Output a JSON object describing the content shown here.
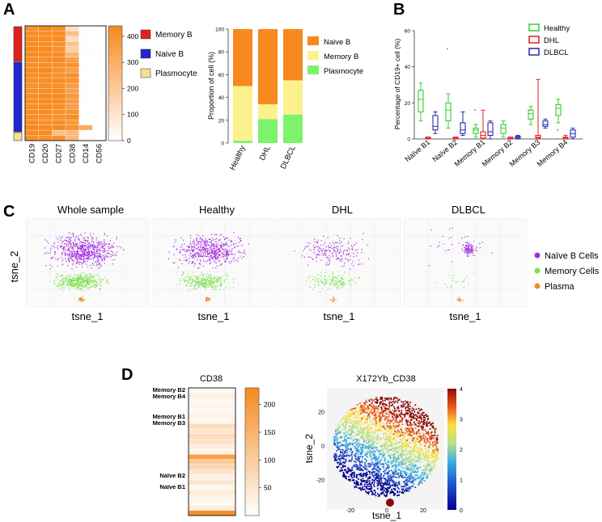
{
  "panels": {
    "a": "A",
    "b": "B",
    "c": "C",
    "d": "D"
  },
  "colors": {
    "memory_b": "#e02020",
    "naive_b": "#2323d0",
    "plasmocyte": "#f7df90",
    "orange": "#f7891e",
    "yellow": "#fbf28e",
    "green": "#7df26b",
    "healthy": "#33cc33",
    "dhl": "#dd2222",
    "dlbcl": "#2a2ab0",
    "tsne_purple": "#a52ee0",
    "tsne_green": "#7de04f",
    "tsne_orange": "#ef8d2c"
  },
  "panel_a": {
    "heatmap": {
      "markers": [
        "CD19",
        "CD20",
        "CD27",
        "CD38",
        "CD14",
        "CD56"
      ],
      "colorbar_ticks": [
        400,
        300,
        200,
        100,
        0
      ],
      "legend": [
        "Memory B",
        "Naive B",
        "Plasmocyte"
      ]
    },
    "chart_data": {
      "type": "bar",
      "stacked": true,
      "categories": [
        "Healthy",
        "DHL",
        "DLBCL"
      ],
      "series": [
        {
          "name": "Plasmocyte",
          "values": [
            2,
            21,
            25
          ]
        },
        {
          "name": "Memory B",
          "values": [
            48,
            13,
            30
          ]
        },
        {
          "name": "Naive B",
          "values": [
            50,
            66,
            45
          ]
        }
      ],
      "legend": [
        "Naive B",
        "Memory B",
        "Plasmocyte"
      ],
      "ylabel": "Proportion of cell (%)",
      "ylim": [
        0,
        100
      ],
      "yticks": [
        0,
        20,
        40,
        60,
        80,
        100
      ]
    }
  },
  "panel_b": {
    "chart_data": {
      "type": "box",
      "categories": [
        "Naïve B1",
        "Naïve B2",
        "Memory B1",
        "Memory B2",
        "Memory B3",
        "Memory B4"
      ],
      "series": [
        {
          "name": "Healthy",
          "boxes": [
            [
              10,
              15,
              22,
              27,
              31
            ],
            [
              6,
              10,
              16,
              20,
              25
            ],
            [
              1,
              3,
              5,
              6,
              8
            ],
            [
              1,
              3,
              6,
              8,
              10
            ],
            [
              8,
              11,
              14,
              16,
              18
            ],
            [
              9,
              13,
              17,
              19,
              22
            ]
          ]
        },
        {
          "name": "DHL",
          "boxes": [
            [
              0,
              0,
              0.5,
              1,
              1
            ],
            [
              0,
              0,
              0.5,
              1,
              1
            ],
            [
              0,
              0.5,
              2,
              4,
              16
            ],
            [
              0,
              0,
              0.5,
              1,
              1
            ],
            [
              0,
              0.5,
              1,
              2,
              33
            ],
            [
              0,
              0,
              0.5,
              1,
              2
            ]
          ]
        },
        {
          "name": "DLBCL",
          "boxes": [
            [
              3,
              5,
              7,
              13,
              15
            ],
            [
              2,
              3,
              5,
              9,
              15
            ],
            [
              0,
              2,
              4,
              9,
              10
            ],
            [
              0,
              0.5,
              1,
              1.5,
              2
            ],
            [
              6,
              7,
              8,
              10,
              11
            ],
            [
              0,
              1,
              3,
              5,
              6
            ]
          ]
        }
      ],
      "ylabel": "Percentage of CD19+ cell (%)",
      "ylim": [
        0,
        60
      ],
      "yticks": [
        0,
        20,
        40,
        60
      ]
    }
  },
  "panel_c": {
    "titles": [
      "Whole sample",
      "Healthy",
      "DHL",
      "DLBCL"
    ],
    "xlabel": "tsne_1",
    "ylabel": "tsne_2",
    "legend": [
      "Naïve B Cells",
      "Memory Cells",
      "Plasma"
    ]
  },
  "panel_d": {
    "heatmap_title": "CD38",
    "row_labels": [
      "Memory B2",
      "Memory B4",
      "Memory B1",
      "Memory B3",
      "Naïve B2",
      "Naïve B1"
    ],
    "colorbar_ticks": [
      200,
      150,
      100,
      50
    ],
    "tsne_title": "X172Yb_CD38",
    "xlabel": "tsne_1",
    "ylabel": "tsne_2",
    "xticks": [
      -20,
      0,
      20
    ],
    "yticks": [
      20,
      0,
      -20
    ],
    "colorbar2_ticks": [
      4,
      3,
      2,
      1,
      0
    ]
  }
}
